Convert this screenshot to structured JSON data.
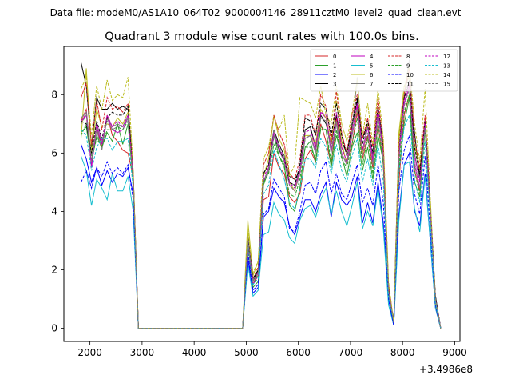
{
  "suptitle": "Data file: modeM0/AS1A10_064T02_9000004146_28911cztM0_level2_quad_clean.evt",
  "chart_data": {
    "type": "line",
    "title": "Quadrant 3 module wise count rates with 100.0s bins.",
    "xlabel": "",
    "ylabel": "",
    "x_offset_label": "+3.4986e8",
    "xlim": [
      1500,
      9100
    ],
    "ylim": [
      -0.45,
      9.65
    ],
    "xticks": [
      2000,
      3000,
      4000,
      5000,
      6000,
      7000,
      8000,
      9000
    ],
    "yticks": [
      0,
      2,
      4,
      6,
      8
    ],
    "grid": false,
    "legend_position": "top-right",
    "x": [
      1830,
      1930,
      2030,
      2130,
      2230,
      2330,
      2430,
      2530,
      2630,
      2730,
      2830,
      2930,
      3030,
      3130,
      3230,
      3330,
      3430,
      3530,
      3630,
      3730,
      3830,
      3930,
      4030,
      4130,
      4230,
      4330,
      4430,
      4530,
      4630,
      4730,
      4830,
      4930,
      5030,
      5130,
      5230,
      5330,
      5430,
      5530,
      5630,
      5730,
      5830,
      5930,
      6030,
      6130,
      6230,
      6330,
      6430,
      6530,
      6630,
      6730,
      6830,
      6930,
      7030,
      7130,
      7230,
      7330,
      7430,
      7530,
      7630,
      7730,
      7830,
      7930,
      8030,
      8130,
      8230,
      8330,
      8430,
      8530,
      8630,
      8730
    ],
    "series": [
      {
        "name": "0",
        "color": "#d62728",
        "dash": false,
        "values": [
          7.1,
          7.5,
          5.6,
          6.9,
          6.2,
          7.3,
          6.6,
          6.4,
          6.1,
          6.0,
          5.2,
          0,
          0,
          0,
          0,
          0,
          0,
          0,
          0,
          0,
          0,
          0,
          0,
          0,
          0,
          0,
          0,
          0,
          0,
          0,
          0,
          0,
          3.0,
          1.5,
          1.9,
          4.4,
          4.5,
          6.0,
          5.5,
          5.3,
          4.5,
          4.3,
          4.6,
          5.8,
          6.1,
          5.7,
          7.0,
          6.4,
          5.6,
          7.2,
          6.2,
          5.7,
          6.3,
          7.4,
          5.8,
          6.6,
          5.5,
          7.0,
          5.6,
          1.2,
          0.2,
          5.0,
          7.3,
          8.0,
          5.4,
          4.7,
          7.0,
          4.1,
          1.0,
          0
        ]
      },
      {
        "name": "1",
        "color": "#2ca02c",
        "dash": false,
        "values": [
          6.7,
          6.9,
          5.7,
          6.6,
          6.2,
          6.7,
          6.4,
          7.0,
          6.3,
          7.0,
          5.0,
          0,
          0,
          0,
          0,
          0,
          0,
          0,
          0,
          0,
          0,
          0,
          0,
          0,
          0,
          0,
          0,
          0,
          0,
          0,
          0,
          0,
          2.9,
          1.4,
          1.6,
          4.9,
          5.4,
          6.6,
          5.9,
          5.6,
          4.2,
          4.0,
          4.8,
          6.2,
          6.4,
          5.7,
          6.8,
          6.8,
          5.5,
          6.6,
          5.9,
          5.2,
          6.2,
          6.7,
          5.4,
          6.2,
          5.1,
          6.6,
          5.7,
          1.2,
          0.2,
          5.4,
          7.0,
          7.9,
          5.0,
          4.5,
          6.9,
          3.9,
          0.9,
          0
        ]
      },
      {
        "name": "2",
        "color": "#0000ff",
        "dash": false,
        "values": [
          6.3,
          5.8,
          5.0,
          5.5,
          4.9,
          5.4,
          5.0,
          5.3,
          5.2,
          5.5,
          4.6,
          0,
          0,
          0,
          0,
          0,
          0,
          0,
          0,
          0,
          0,
          0,
          0,
          0,
          0,
          0,
          0,
          0,
          0,
          0,
          0,
          0,
          2.4,
          1.2,
          1.4,
          3.8,
          4.0,
          4.8,
          4.5,
          4.3,
          3.5,
          3.2,
          3.8,
          4.4,
          4.4,
          4.0,
          4.6,
          5.0,
          3.8,
          5.0,
          4.4,
          4.2,
          4.5,
          5.2,
          3.6,
          4.3,
          3.6,
          5.0,
          3.6,
          1.0,
          0.1,
          3.9,
          5.6,
          6.0,
          4.0,
          3.5,
          5.3,
          3.0,
          0.7,
          0
        ]
      },
      {
        "name": "3",
        "color": "#000000",
        "dash": false,
        "values": [
          9.1,
          8.3,
          6.2,
          7.9,
          7.5,
          7.5,
          7.7,
          7.5,
          7.6,
          7.5,
          5.3,
          0,
          0,
          0,
          0,
          0,
          0,
          0,
          0,
          0,
          0,
          0,
          0,
          0,
          0,
          0,
          0,
          0,
          0,
          0,
          0,
          0,
          2.9,
          1.6,
          2.0,
          5.3,
          5.6,
          6.8,
          6.3,
          5.9,
          5.2,
          5.1,
          5.4,
          6.8,
          6.9,
          6.2,
          7.3,
          7.0,
          6.3,
          7.3,
          6.4,
          6.0,
          6.9,
          7.8,
          6.5,
          7.0,
          5.8,
          7.5,
          6.1,
          1.3,
          0.2,
          6.6,
          7.9,
          8.4,
          6.7,
          5.1,
          7.2,
          4.2,
          1.1,
          0
        ]
      },
      {
        "name": "4",
        "color": "#bf00bf",
        "dash": false,
        "values": [
          7.0,
          7.4,
          5.5,
          6.9,
          6.3,
          7.2,
          6.8,
          6.7,
          6.8,
          7.2,
          5.1,
          0,
          0,
          0,
          0,
          0,
          0,
          0,
          0,
          0,
          0,
          0,
          0,
          0,
          0,
          0,
          0,
          0,
          0,
          0,
          0,
          0,
          3.0,
          1.5,
          1.8,
          5.0,
          5.5,
          6.6,
          6.1,
          5.7,
          4.9,
          4.7,
          5.3,
          6.5,
          6.6,
          6.1,
          7.4,
          7.2,
          6.0,
          7.0,
          6.0,
          5.6,
          6.6,
          7.6,
          6.0,
          6.9,
          5.7,
          7.4,
          5.9,
          1.3,
          0.2,
          5.8,
          7.7,
          8.3,
          5.6,
          4.8,
          7.1,
          4.2,
          1.0,
          0
        ]
      },
      {
        "name": "5",
        "color": "#17becf",
        "dash": false,
        "values": [
          5.9,
          5.4,
          4.2,
          5.1,
          4.8,
          4.4,
          5.3,
          4.7,
          4.7,
          5.2,
          4.0,
          0,
          0,
          0,
          0,
          0,
          0,
          0,
          0,
          0,
          0,
          0,
          0,
          0,
          0,
          0,
          0,
          0,
          0,
          0,
          0,
          0,
          2.2,
          1.1,
          1.3,
          3.2,
          3.3,
          4.3,
          3.9,
          3.7,
          3.1,
          2.9,
          3.7,
          4.1,
          4.2,
          3.8,
          4.4,
          4.8,
          3.9,
          4.7,
          4.0,
          3.5,
          4.2,
          5.0,
          3.4,
          4.0,
          3.5,
          4.8,
          3.4,
          0.8,
          0.1,
          3.7,
          5.6,
          5.7,
          4.1,
          3.3,
          5.2,
          3.0,
          0.7,
          0
        ]
      },
      {
        "name": "6",
        "color": "#bcbd22",
        "dash": false,
        "values": [
          6.5,
          8.9,
          6.0,
          7.5,
          6.9,
          7.0,
          6.9,
          7.2,
          7.0,
          7.4,
          5.4,
          0,
          0,
          0,
          0,
          0,
          0,
          0,
          0,
          0,
          0,
          0,
          0,
          0,
          0,
          0,
          0,
          0,
          0,
          0,
          0,
          0,
          3.7,
          1.8,
          2.3,
          5.2,
          5.8,
          7.3,
          6.5,
          6.1,
          5.0,
          4.7,
          5.4,
          6.6,
          6.6,
          6.3,
          7.5,
          7.2,
          6.3,
          7.8,
          6.4,
          5.6,
          6.9,
          7.5,
          6.0,
          7.0,
          5.8,
          7.6,
          6.1,
          1.4,
          0.2,
          6.7,
          8.3,
          8.6,
          6.3,
          5.4,
          7.2,
          4.3,
          0.8,
          0
        ]
      },
      {
        "name": "7",
        "color": "#7f7f7f",
        "dash": false,
        "values": [
          7.2,
          7.4,
          5.9,
          6.8,
          6.1,
          7.2,
          6.9,
          7.0,
          6.9,
          7.3,
          5.2,
          0,
          0,
          0,
          0,
          0,
          0,
          0,
          0,
          0,
          0,
          0,
          0,
          0,
          0,
          0,
          0,
          0,
          0,
          0,
          0,
          0,
          3.2,
          1.6,
          1.9,
          5.1,
          5.3,
          6.8,
          6.1,
          5.9,
          5.0,
          4.9,
          5.4,
          6.5,
          6.6,
          6.0,
          7.2,
          7.1,
          6.1,
          7.0,
          5.9,
          5.7,
          6.7,
          8.6,
          6.1,
          6.9,
          5.9,
          7.3,
          6.0,
          1.3,
          0.2,
          6.0,
          8.0,
          9.2,
          6.0,
          5.1,
          7.0,
          4.0,
          1.0,
          0
        ]
      },
      {
        "name": "8",
        "color": "#d62728",
        "dash": true,
        "values": [
          7.9,
          8.4,
          6.3,
          7.8,
          6.8,
          7.9,
          7.5,
          7.6,
          7.4,
          7.7,
          5.3,
          0,
          0,
          0,
          0,
          0,
          0,
          0,
          0,
          0,
          0,
          0,
          0,
          0,
          0,
          0,
          0,
          0,
          0,
          0,
          0,
          0,
          3.1,
          1.7,
          2.1,
          5.6,
          6.0,
          7.3,
          6.7,
          6.3,
          5.3,
          5.1,
          5.8,
          7.3,
          7.3,
          6.6,
          8.0,
          7.6,
          6.4,
          8.1,
          6.7,
          6.0,
          7.3,
          8.0,
          6.5,
          7.2,
          6.2,
          7.9,
          6.3,
          1.5,
          0.2,
          6.4,
          8.0,
          8.9,
          6.5,
          5.5,
          7.3,
          4.3,
          1.0,
          0
        ]
      },
      {
        "name": "9",
        "color": "#2ca02c",
        "dash": true,
        "values": [
          6.6,
          7.0,
          5.8,
          6.5,
          6.2,
          6.8,
          6.8,
          6.9,
          6.8,
          7.1,
          5.0,
          0,
          0,
          0,
          0,
          0,
          0,
          0,
          0,
          0,
          0,
          0,
          0,
          0,
          0,
          0,
          0,
          0,
          0,
          0,
          0,
          0,
          3.0,
          1.5,
          1.8,
          5.0,
          5.3,
          6.3,
          5.9,
          5.5,
          4.6,
          4.5,
          5.1,
          6.2,
          6.2,
          5.8,
          6.9,
          6.8,
          5.7,
          6.8,
          5.8,
          5.5,
          6.3,
          7.2,
          5.6,
          6.5,
          5.3,
          7.0,
          5.6,
          1.2,
          0.2,
          5.6,
          7.4,
          8.0,
          5.4,
          4.6,
          6.8,
          3.9,
          1.0,
          0
        ]
      },
      {
        "name": "10",
        "color": "#0000ff",
        "dash": true,
        "values": [
          5.0,
          5.4,
          4.8,
          5.5,
          5.2,
          5.7,
          5.3,
          5.5,
          5.3,
          5.6,
          4.4,
          0,
          0,
          0,
          0,
          0,
          0,
          0,
          0,
          0,
          0,
          0,
          0,
          0,
          0,
          0,
          0,
          0,
          0,
          0,
          0,
          0,
          2.6,
          1.3,
          1.5,
          3.9,
          4.1,
          5.1,
          4.8,
          4.5,
          3.4,
          3.3,
          4.0,
          4.9,
          5.0,
          4.6,
          5.4,
          5.7,
          4.6,
          5.3,
          4.6,
          4.4,
          5.0,
          5.6,
          4.3,
          4.8,
          4.2,
          5.6,
          4.3,
          1.0,
          0.1,
          4.7,
          6.1,
          6.6,
          4.6,
          3.9,
          5.9,
          3.4,
          0.8,
          0
        ]
      },
      {
        "name": "11",
        "color": "#000000",
        "dash": true,
        "values": [
          7.1,
          7.0,
          6.0,
          7.1,
          6.5,
          7.2,
          7.4,
          7.3,
          7.3,
          7.6,
          5.3,
          0,
          0,
          0,
          0,
          0,
          0,
          0,
          0,
          0,
          0,
          0,
          0,
          0,
          0,
          0,
          0,
          0,
          0,
          0,
          0,
          0,
          3.1,
          1.7,
          2.0,
          5.3,
          5.6,
          6.6,
          6.1,
          5.8,
          5.0,
          4.9,
          5.6,
          7.2,
          7.1,
          6.6,
          7.7,
          7.5,
          6.6,
          7.7,
          6.6,
          5.9,
          7.0,
          7.9,
          6.3,
          7.1,
          6.0,
          7.6,
          6.2,
          1.4,
          0.2,
          6.1,
          7.9,
          8.5,
          6.2,
          5.3,
          7.1,
          4.2,
          1.1,
          0
        ]
      },
      {
        "name": "12",
        "color": "#bf00bf",
        "dash": true,
        "values": [
          7.1,
          7.3,
          5.6,
          7.0,
          6.4,
          7.3,
          6.9,
          7.1,
          6.9,
          7.3,
          5.2,
          0,
          0,
          0,
          0,
          0,
          0,
          0,
          0,
          0,
          0,
          0,
          0,
          0,
          0,
          0,
          0,
          0,
          0,
          0,
          0,
          0,
          3.0,
          1.6,
          1.9,
          5.2,
          5.5,
          6.7,
          6.2,
          5.8,
          5.0,
          4.8,
          5.4,
          6.7,
          6.8,
          6.2,
          7.4,
          7.3,
          6.1,
          7.4,
          6.2,
          5.7,
          6.8,
          7.7,
          6.1,
          6.9,
          5.8,
          7.5,
          6.0,
          1.3,
          0.2,
          6.0,
          7.8,
          8.4,
          5.9,
          5.0,
          7.1,
          4.1,
          1.0,
          0
        ]
      },
      {
        "name": "13",
        "color": "#17becf",
        "dash": true,
        "values": [
          6.8,
          6.6,
          5.4,
          6.2,
          6.5,
          6.5,
          6.1,
          6.4,
          6.4,
          6.5,
          4.8,
          0,
          0,
          0,
          0,
          0,
          0,
          0,
          0,
          0,
          0,
          0,
          0,
          0,
          0,
          0,
          0,
          0,
          0,
          0,
          0,
          0,
          3.0,
          1.5,
          1.7,
          4.6,
          4.9,
          6.1,
          5.6,
          5.1,
          4.3,
          4.1,
          4.7,
          5.8,
          5.8,
          5.5,
          6.5,
          6.2,
          5.3,
          6.3,
          5.4,
          5.0,
          5.9,
          6.5,
          5.0,
          5.8,
          4.9,
          6.3,
          5.0,
          1.1,
          0.2,
          5.3,
          6.9,
          7.3,
          5.1,
          4.3,
          6.4,
          3.7,
          0.9,
          0
        ]
      },
      {
        "name": "14",
        "color": "#bcbd22",
        "dash": true,
        "values": [
          8.2,
          8.6,
          6.6,
          8.3,
          7.5,
          8.5,
          7.8,
          8.0,
          7.9,
          8.6,
          5.4,
          0,
          0,
          0,
          0,
          0,
          0,
          0,
          0,
          0,
          0,
          0,
          0,
          0,
          0,
          0,
          0,
          0,
          0,
          0,
          0,
          0,
          3.4,
          1.9,
          2.3,
          5.8,
          6.2,
          7.2,
          6.8,
          7.3,
          5.2,
          5.6,
          7.9,
          7.8,
          7.7,
          7.2,
          8.3,
          7.3,
          7.0,
          8.3,
          7.0,
          6.4,
          7.4,
          8.5,
          6.6,
          7.7,
          6.3,
          8.2,
          6.5,
          1.6,
          0.2,
          6.5,
          8.2,
          9.0,
          7.0,
          5.7,
          8.2,
          4.5,
          1.0,
          0
        ]
      },
      {
        "name": "15",
        "color": "#7f7f7f",
        "dash": true,
        "values": [
          7.0,
          7.3,
          5.7,
          6.9,
          6.4,
          7.1,
          6.8,
          6.9,
          6.9,
          7.2,
          5.1,
          0,
          0,
          0,
          0,
          0,
          0,
          0,
          0,
          0,
          0,
          0,
          0,
          0,
          0,
          0,
          0,
          0,
          0,
          0,
          0,
          0,
          3.0,
          1.6,
          1.9,
          5.1,
          5.4,
          6.6,
          6.1,
          5.7,
          4.9,
          4.7,
          5.3,
          6.5,
          6.6,
          6.0,
          7.2,
          7.1,
          6.0,
          7.1,
          6.0,
          5.6,
          6.6,
          7.5,
          5.9,
          6.7,
          5.6,
          7.2,
          5.8,
          1.3,
          0.2,
          5.8,
          7.6,
          8.2,
          5.7,
          4.8,
          6.9,
          4.0,
          1.0,
          0
        ]
      }
    ]
  }
}
